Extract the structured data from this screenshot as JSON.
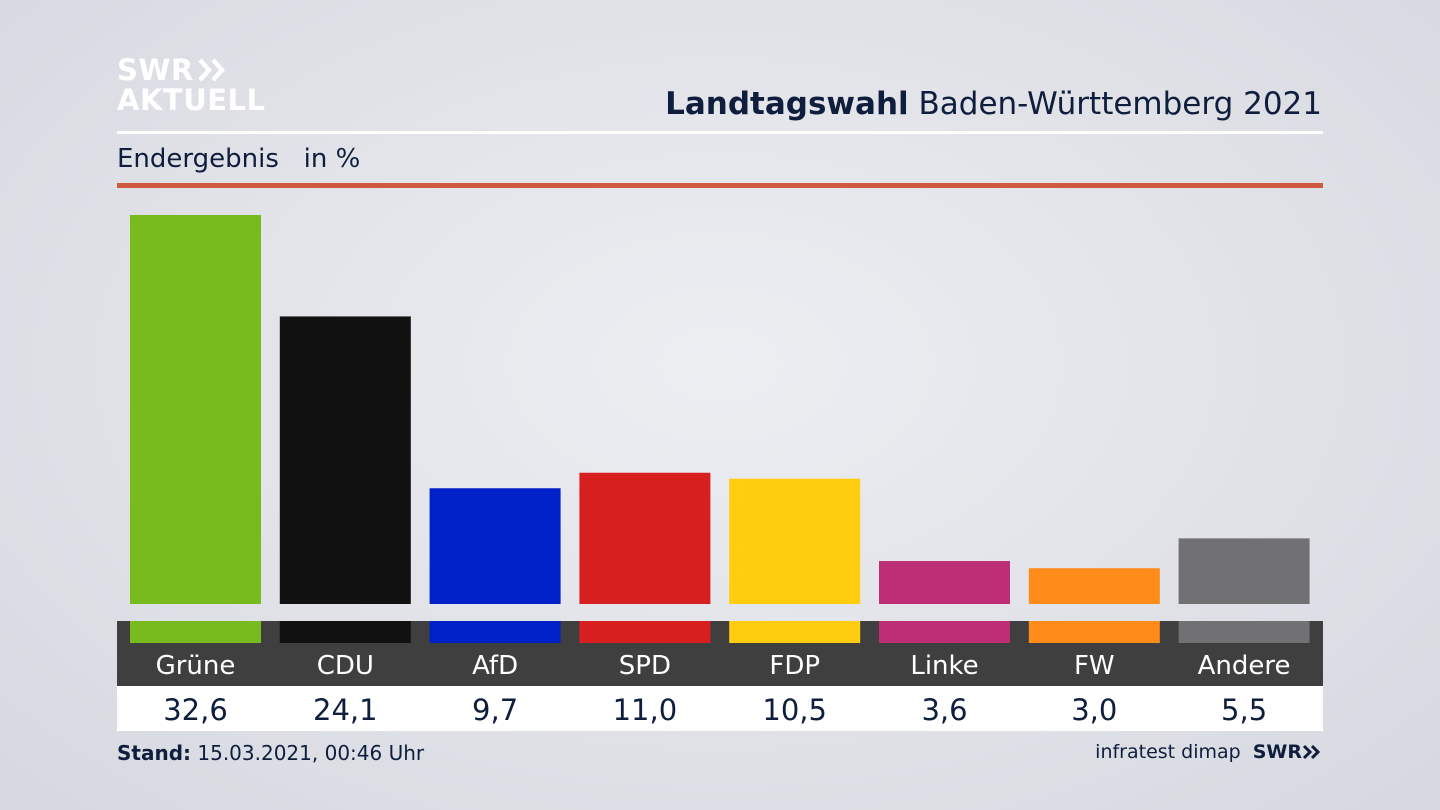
{
  "brand": {
    "logo_line1": "SWR",
    "logo_line2": "AKTUELL",
    "footer_logo": "SWR"
  },
  "header": {
    "title_bold": "Landtagswahl",
    "title_rest": " Baden-Württemberg 2021",
    "subtitle": "Endergebnis   in %"
  },
  "footer": {
    "stand_label": "Stand:",
    "stand_value": " 15.03.2021, 00:46 Uhr",
    "source": "infratest dimap"
  },
  "colors": {
    "accent_rule": "#cf5a42",
    "label_band": "#3f3f3f",
    "text": "#0f1e3c"
  },
  "chart_data": {
    "type": "bar",
    "title": "Landtagswahl Baden-Württemberg 2021",
    "subtitle": "Endergebnis in %",
    "categories": [
      "Grüne",
      "CDU",
      "AfD",
      "SPD",
      "FDP",
      "Linke",
      "FW",
      "Andere"
    ],
    "values": [
      32.6,
      24.1,
      9.7,
      11.0,
      10.5,
      3.6,
      3.0,
      5.5
    ],
    "value_labels": [
      "32,6",
      "24,1",
      "9,7",
      "11,0",
      "10,5",
      "3,6",
      "3,0",
      "5,5"
    ],
    "colors": [
      "#78bb1e",
      "#111111",
      "#0020c8",
      "#d71f1f",
      "#ffcc10",
      "#be2e76",
      "#ff8c1a",
      "#717174"
    ],
    "ylim": [
      0,
      32.6
    ],
    "grid": false,
    "legend": "none"
  }
}
